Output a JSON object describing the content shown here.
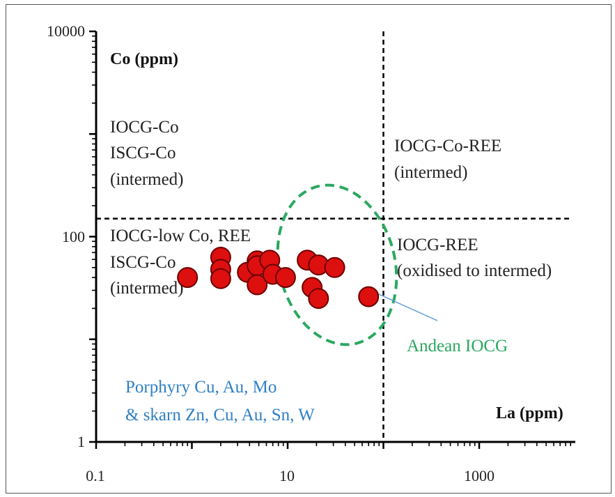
{
  "chart_data": {
    "type": "scatter",
    "title": "",
    "xlabel": "La (ppm)",
    "ylabel": "Co (ppm)",
    "x_scale": "log",
    "y_scale": "log",
    "xlim": [
      0.1,
      10000
    ],
    "ylim": [
      1,
      10000
    ],
    "x_tick_labels": [
      "0.1",
      "10",
      "1000"
    ],
    "y_tick_labels": [
      "1",
      "100",
      "10000"
    ],
    "grid": false,
    "points": [
      {
        "x": 0.9,
        "y": 40
      },
      {
        "x": 2.0,
        "y": 63
      },
      {
        "x": 2.0,
        "y": 48
      },
      {
        "x": 2.0,
        "y": 39
      },
      {
        "x": 3.8,
        "y": 45
      },
      {
        "x": 4.8,
        "y": 58
      },
      {
        "x": 4.8,
        "y": 52
      },
      {
        "x": 4.8,
        "y": 34
      },
      {
        "x": 6.5,
        "y": 59
      },
      {
        "x": 7.0,
        "y": 43
      },
      {
        "x": 9.5,
        "y": 40
      },
      {
        "x": 16,
        "y": 59
      },
      {
        "x": 18,
        "y": 32
      },
      {
        "x": 21,
        "y": 53
      },
      {
        "x": 21,
        "y": 25
      },
      {
        "x": 31,
        "y": 50
      },
      {
        "x": 70,
        "y": 26
      }
    ],
    "reference_lines": [
      {
        "orientation": "vertical",
        "x": 100,
        "style": "dashed"
      },
      {
        "orientation": "horizontal",
        "y": 150,
        "style": "dashed"
      }
    ],
    "field_ellipse": {
      "label": "Andean IOCG",
      "center_x": 40,
      "center_y": 110,
      "color": "#2aa860"
    },
    "zone_labels": [
      {
        "lines": [
          "IOCG-Co",
          "ISCG-Co",
          "(intermed)"
        ]
      },
      {
        "lines": [
          "IOCG-Co-REE",
          "(intermed)"
        ]
      },
      {
        "lines": [
          "IOCG-low Co, REE",
          "ISCG-Co",
          "(intermed)"
        ]
      },
      {
        "lines": [
          "IOCG-REE",
          "(oxidised to intermed)"
        ]
      },
      {
        "lines": [
          "Porphyry Cu, Au, Mo",
          "& skarn Zn, Cu, Au, Sn, W"
        ],
        "color": "#2f7fc4"
      }
    ],
    "colors": {
      "marker": "#dd0f0f",
      "marker_edge": "#6b0000",
      "ellipse": "#2aa860",
      "blue_label": "#2f7fc4"
    }
  }
}
